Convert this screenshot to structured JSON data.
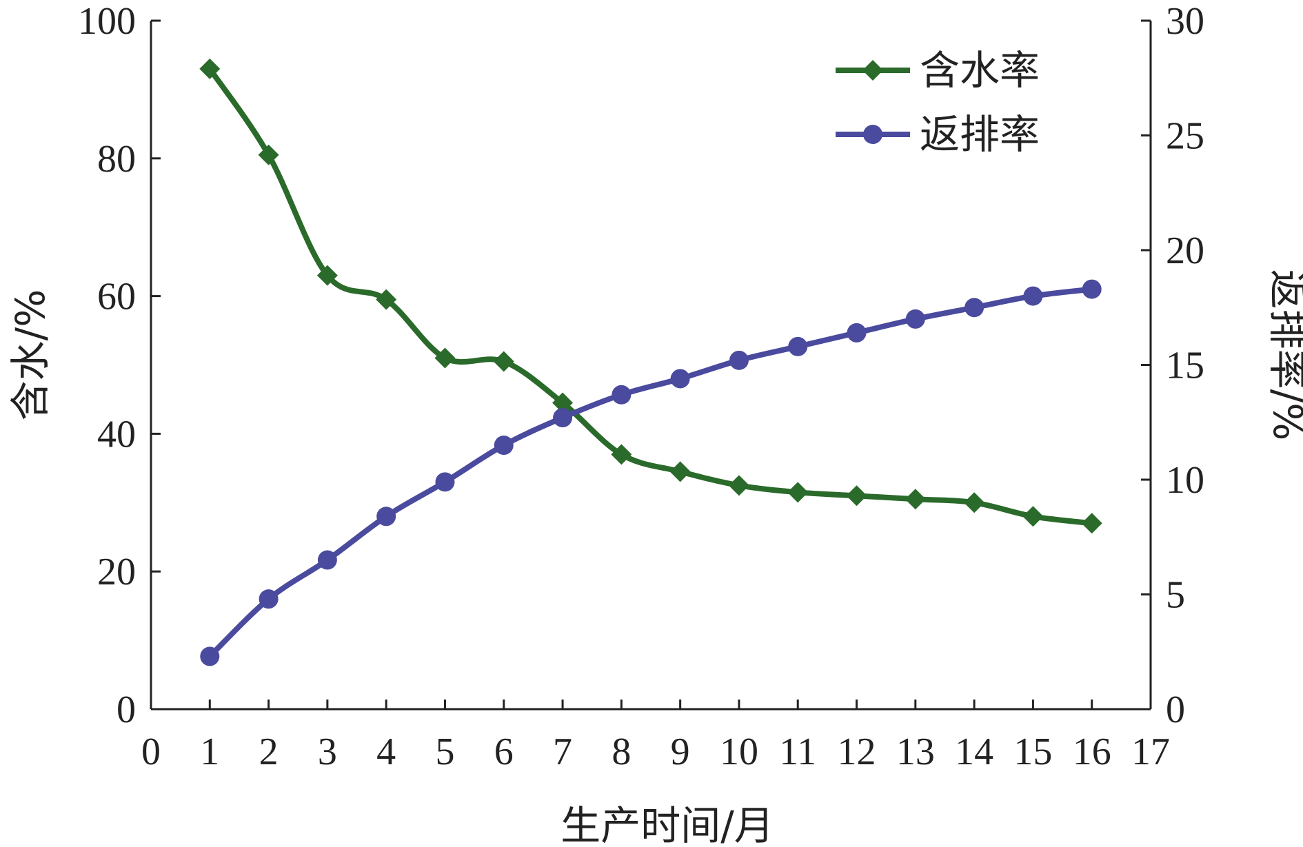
{
  "chart_data": {
    "type": "line",
    "xlabel": "生产时间/月",
    "ylabel_left": "含水/%",
    "ylabel_right": "返排率/%",
    "xlim": [
      0,
      17
    ],
    "ylim_left": [
      0,
      100
    ],
    "ylim_right": [
      0,
      30
    ],
    "x_ticks": [
      "0",
      "1",
      "2",
      "3",
      "4",
      "5",
      "6",
      "7",
      "8",
      "9",
      "10",
      "11",
      "12",
      "13",
      "14",
      "15",
      "16",
      "17"
    ],
    "y_left_ticks": [
      "0",
      "20",
      "40",
      "60",
      "80",
      "100"
    ],
    "y_right_ticks": [
      "0",
      "5",
      "10",
      "15",
      "20",
      "25",
      "30"
    ],
    "grid": false,
    "legend_position": "top-right",
    "x": [
      1,
      2,
      3,
      4,
      5,
      6,
      7,
      8,
      9,
      10,
      11,
      12,
      13,
      14,
      15,
      16
    ],
    "series": [
      {
        "name": "含水率",
        "axis": "left",
        "marker": "diamond",
        "color": "#2a6a2a",
        "values": [
          93.0,
          80.5,
          63.0,
          59.5,
          51.0,
          50.5,
          44.5,
          37.0,
          34.5,
          32.5,
          31.5,
          31.0,
          30.5,
          30.0,
          28.0,
          27.0
        ]
      },
      {
        "name": "返排率",
        "axis": "right",
        "marker": "circle",
        "color": "#4a4a9e",
        "values": [
          2.3,
          4.8,
          6.5,
          8.4,
          9.9,
          11.5,
          12.7,
          13.7,
          14.4,
          15.2,
          15.8,
          16.4,
          17.0,
          17.5,
          18.0,
          18.3
        ]
      }
    ]
  }
}
